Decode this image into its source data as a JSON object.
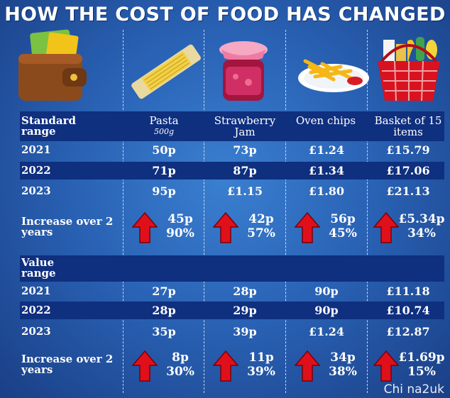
{
  "title": "HOW THE COST OF FOOD HAS CHANGED",
  "colors": {
    "background": "#2a63b6",
    "band": "#0f2f7f",
    "arrow": "#e0101b"
  },
  "icons": [
    "wallet-icon",
    "pasta-icon",
    "jam-jar-icon",
    "oven-chips-icon",
    "shopping-basket-icon",
    "up-arrow-icon"
  ],
  "columns": [
    {
      "name": "Pasta",
      "sub": "500g"
    },
    {
      "name": "Strawberry Jam",
      "sub": ""
    },
    {
      "name": "Oven chips",
      "sub": ""
    },
    {
      "name": "Basket of 15 items",
      "sub": ""
    }
  ],
  "standard": {
    "label": "Standard range",
    "rows": [
      {
        "year": "2021",
        "values": [
          "50p",
          "73p",
          "£1.24",
          "£15.79"
        ]
      },
      {
        "year": "2022",
        "values": [
          "71p",
          "87p",
          "£1.34",
          "£17.06"
        ]
      },
      {
        "year": "2023",
        "values": [
          "95p",
          "£1.15",
          "£1.80",
          "£21.13"
        ]
      }
    ],
    "increase_label": "Increase over 2 years",
    "increase": [
      {
        "amount": "45p",
        "percent": "90%"
      },
      {
        "amount": "42p",
        "percent": "57%"
      },
      {
        "amount": "56p",
        "percent": "45%"
      },
      {
        "amount": "£5.34p",
        "percent": "34%"
      }
    ]
  },
  "value": {
    "label": "Value range",
    "rows": [
      {
        "year": "2021",
        "values": [
          "27p",
          "28p",
          "90p",
          "£11.18"
        ]
      },
      {
        "year": "2022",
        "values": [
          "28p",
          "29p",
          "90p",
          "£10.74"
        ]
      },
      {
        "year": "2023",
        "values": [
          "35p",
          "39p",
          "£1.24",
          "£12.87"
        ]
      }
    ],
    "increase_label": "Increase over 2 years",
    "increase": [
      {
        "amount": "8p",
        "percent": "30%"
      },
      {
        "amount": "11p",
        "percent": "39%"
      },
      {
        "amount": "34p",
        "percent": "38%"
      },
      {
        "amount": "£1.69p",
        "percent": "15%"
      }
    ]
  },
  "watermark": "Chi na2uk"
}
